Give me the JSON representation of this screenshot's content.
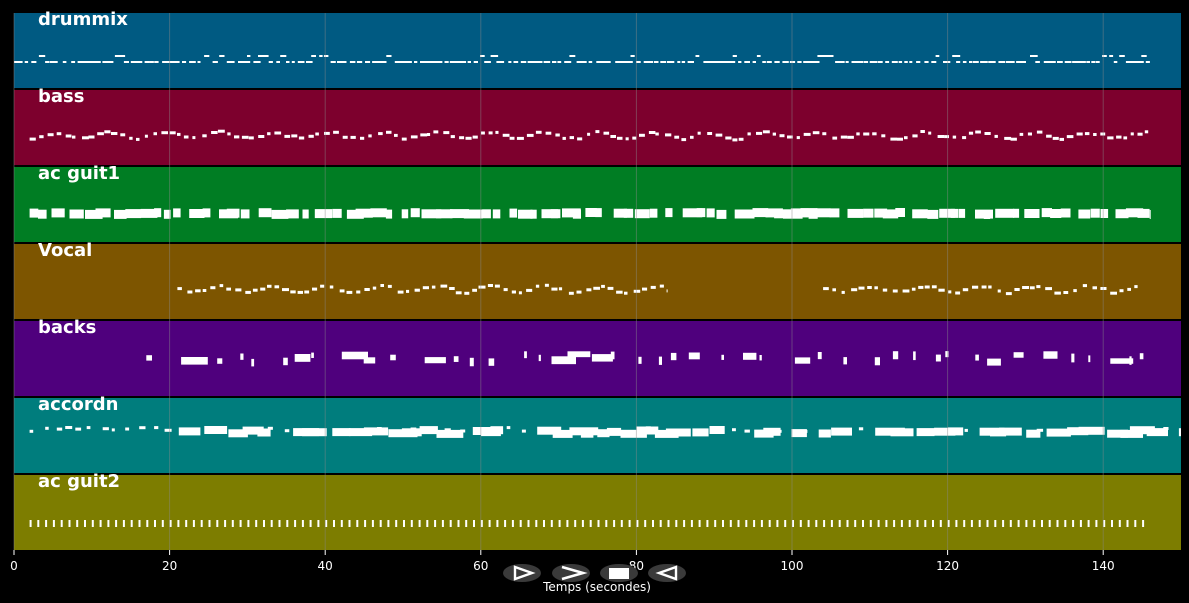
{
  "window": {
    "title": ""
  },
  "timeline": {
    "axis_label": "Temps (secondes)",
    "xlim": [
      0,
      150
    ],
    "ticks": [
      0,
      20,
      40,
      60,
      80,
      100,
      120,
      140
    ],
    "tick_labels": [
      "0",
      "20",
      "40",
      "60",
      "80",
      "100",
      "120",
      "140"
    ],
    "grid_color": "#8a8a8a"
  },
  "tracks": [
    {
      "name": "drummix",
      "color": "#005a82",
      "pattern": "drums",
      "segments": [
        [
          0,
          146
        ]
      ]
    },
    {
      "name": "bass",
      "color": "#7d002d",
      "pattern": "wave",
      "segments": [
        [
          2,
          146
        ]
      ]
    },
    {
      "name": "ac guit1",
      "color": "#007d23",
      "pattern": "thick",
      "segments": [
        [
          2,
          146
        ]
      ]
    },
    {
      "name": "Vocal",
      "color": "#7d5500",
      "pattern": "wave",
      "segments": [
        [
          21,
          84
        ],
        [
          104,
          145
        ]
      ]
    },
    {
      "name": "backs",
      "color": "#4f007d",
      "pattern": "sparse",
      "segments": [
        [
          17,
          146
        ]
      ]
    },
    {
      "name": "accordn",
      "color": "#007d7d",
      "pattern": "mixed",
      "segments": [
        [
          2,
          150
        ]
      ]
    },
    {
      "name": "ac guit2",
      "color": "#7d7d00",
      "pattern": "ticks",
      "segments": [
        [
          2,
          146
        ]
      ]
    }
  ],
  "controls": {
    "play_icon": "play-outline-icon",
    "fast_forward_icon": "chevron-right-icon",
    "stop_icon": "stop-icon",
    "rewind_icon": "play-reverse-icon"
  }
}
